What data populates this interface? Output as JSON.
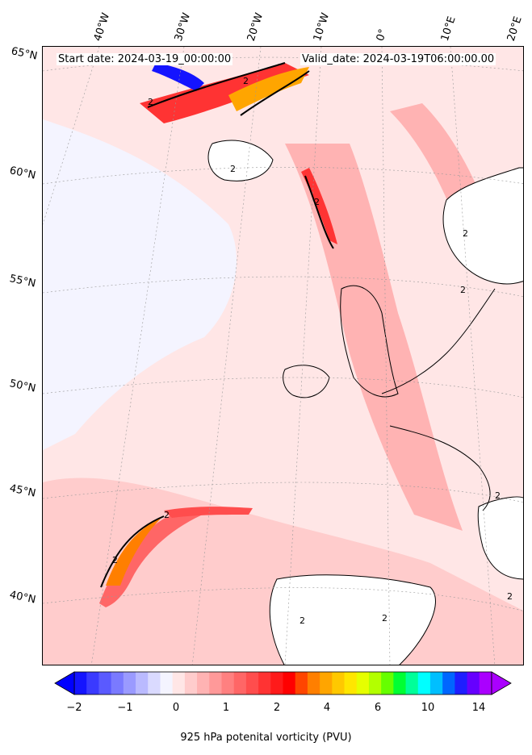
{
  "header": {
    "start_date": "Start date: 2024-03-19_00:00:00",
    "valid_date": "Valid_date: 2024-03-19T06:00:00.00"
  },
  "lon_labels": [
    "40°W",
    "30°W",
    "20°W",
    "10°W",
    "0°",
    "10°E",
    "20°E"
  ],
  "lat_labels": [
    "65°N",
    "60°N",
    "55°N",
    "50°N",
    "45°N",
    "40°N"
  ],
  "colorbar": {
    "label": "925 hPa potenital vorticity (PVU)",
    "ticks": [
      "−2",
      "−1",
      "0",
      "1",
      "2",
      "4",
      "6",
      "10",
      "14"
    ],
    "colors": [
      "#1414ff",
      "#3a3aff",
      "#5a5aff",
      "#7a7aff",
      "#9a9aff",
      "#babaff",
      "#dadaff",
      "#f4f4ff",
      "#ffe6e6",
      "#ffcccc",
      "#ffb3b3",
      "#ff9999",
      "#ff8080",
      "#ff6666",
      "#ff4d4d",
      "#ff3333",
      "#ff1a1a",
      "#ff0000",
      "#ff4500",
      "#ff7f00",
      "#ffa500",
      "#ffc800",
      "#ffe600",
      "#e6ff00",
      "#b3ff00",
      "#66ff00",
      "#00ff33",
      "#00ff99",
      "#00ffff",
      "#00bfff",
      "#0066ff",
      "#1e1eff",
      "#6600ff",
      "#aa00ff"
    ]
  },
  "contour_labels": [
    "2",
    "2",
    "2",
    "2",
    "2",
    "2",
    "2",
    "2",
    "2",
    "2",
    "2",
    "2"
  ]
}
